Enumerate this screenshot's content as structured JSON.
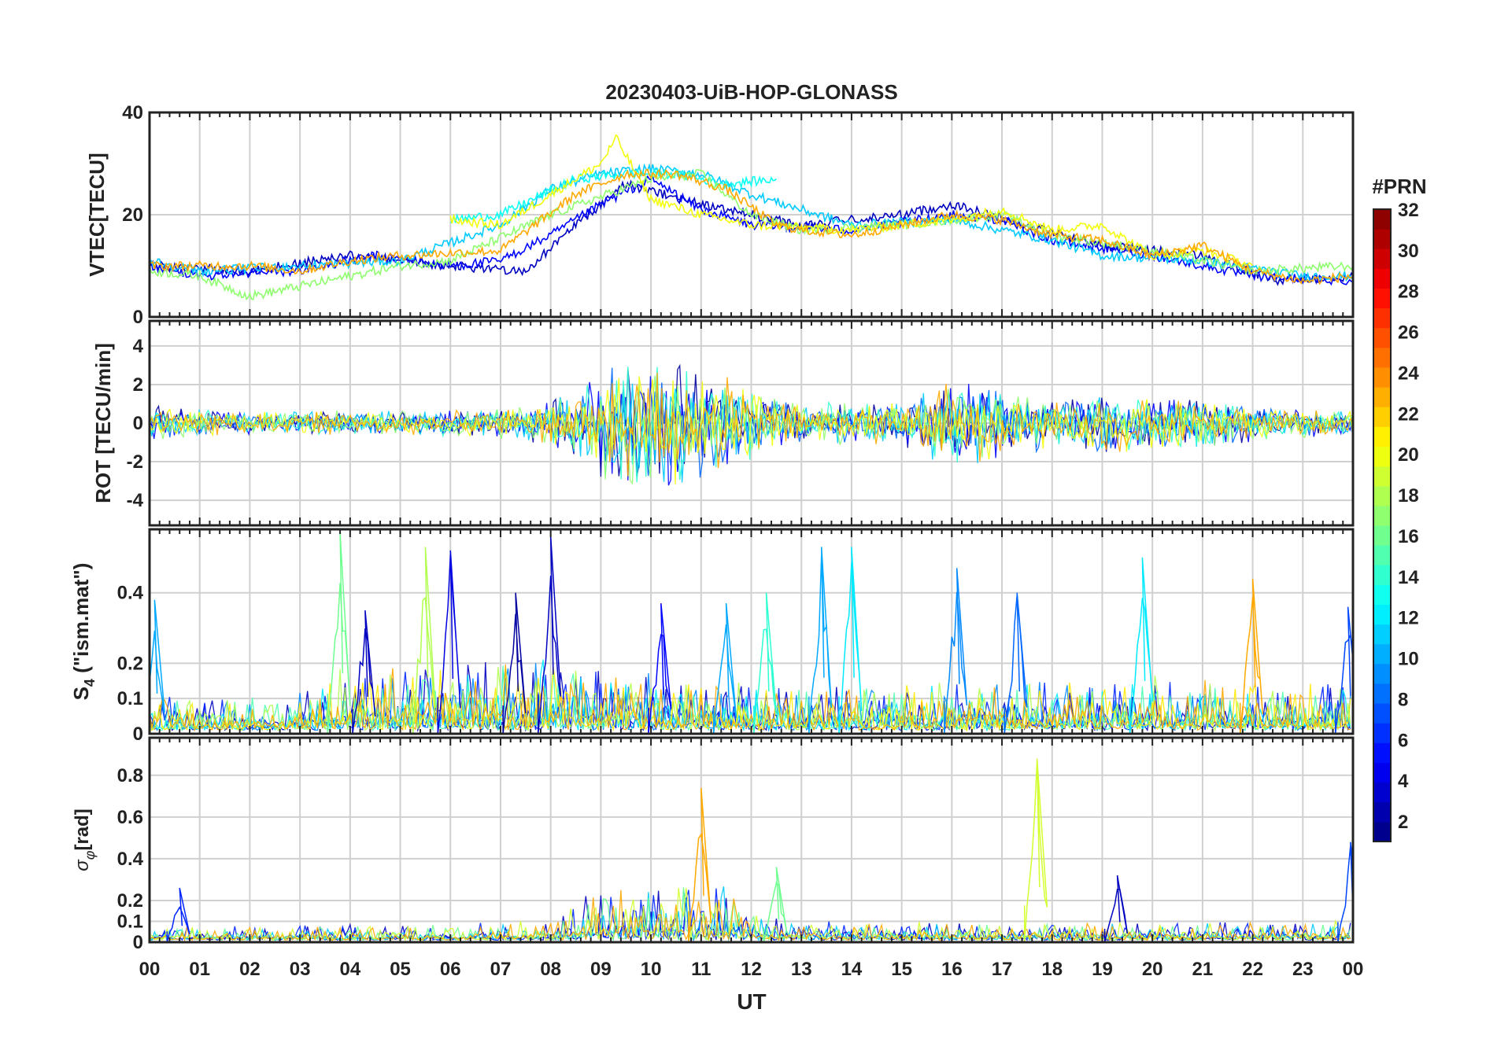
{
  "chart_data": {
    "type": "line",
    "title": "20230403-UiB-HOP-GLONASS",
    "xlabel": "UT",
    "x_range_hours": [
      0,
      24
    ],
    "x_tick_labels": [
      "00",
      "01",
      "02",
      "03",
      "04",
      "05",
      "06",
      "07",
      "08",
      "09",
      "10",
      "11",
      "12",
      "13",
      "14",
      "15",
      "16",
      "17",
      "18",
      "19",
      "20",
      "21",
      "22",
      "23",
      "00"
    ],
    "grid": true,
    "colorbar": {
      "label": "#PRN",
      "range": [
        1,
        32
      ],
      "tick_labels": [
        "2",
        "4",
        "6",
        "8",
        "10",
        "12",
        "14",
        "16",
        "18",
        "20",
        "22",
        "24",
        "26",
        "28",
        "30",
        "32"
      ],
      "colormap": "jet"
    },
    "panels": [
      {
        "id": "vtec",
        "ylabel": "VTEC[TECU]",
        "ylim": [
          0,
          40
        ],
        "y_ticks": [
          0,
          20,
          40
        ],
        "y_tick_labels": [
          "0",
          "20",
          "40"
        ],
        "series": [
          {
            "prn": 3,
            "points": [
              [
                0,
                10
              ],
              [
                2,
                9
              ],
              [
                4,
                12
              ],
              [
                6,
                10
              ],
              [
                7.5,
                9
              ],
              [
                8.5,
                18
              ],
              [
                9.5,
                26
              ],
              [
                11,
                22
              ],
              [
                13,
                18
              ],
              [
                15,
                20
              ],
              [
                16,
                22
              ],
              [
                17.5,
                18
              ],
              [
                19,
                14
              ],
              [
                21,
                12
              ],
              [
                22.5,
                7
              ],
              [
                24,
                8
              ]
            ]
          },
          {
            "prn": 5,
            "points": [
              [
                0,
                10
              ],
              [
                1,
                8
              ],
              [
                3,
                9
              ],
              [
                4.5,
                12
              ],
              [
                6,
                10
              ],
              [
                7,
                11
              ],
              [
                8,
                16
              ],
              [
                9,
                22
              ],
              [
                10,
                27
              ],
              [
                11,
                21
              ],
              [
                12,
                18
              ],
              [
                14,
                17
              ],
              [
                16,
                20
              ],
              [
                17,
                19
              ],
              [
                18,
                15
              ],
              [
                20,
                12
              ],
              [
                22,
                8
              ],
              [
                24,
                7
              ]
            ]
          },
          {
            "prn": 11,
            "points": [
              [
                0,
                11
              ],
              [
                1,
                9
              ],
              [
                3,
                10
              ],
              [
                5,
                11
              ],
              [
                7,
                18
              ],
              [
                8,
                25
              ],
              [
                9,
                28
              ],
              [
                10,
                29
              ],
              [
                11,
                28
              ],
              [
                12,
                24
              ],
              [
                14,
                18
              ],
              [
                16,
                19
              ],
              [
                18,
                15
              ],
              [
                19,
                12
              ],
              [
                21,
                11
              ],
              [
                23,
                8
              ],
              [
                24,
                8
              ]
            ]
          },
          {
            "prn": 13,
            "points": [
              [
                6,
                19
              ],
              [
                7,
                20
              ],
              [
                8.5,
                27
              ],
              [
                9.5,
                28
              ],
              [
                10.5,
                28
              ],
              [
                11.5,
                26
              ],
              [
                12.5,
                27
              ]
            ]
          },
          {
            "prn": 17,
            "points": [
              [
                0,
                9
              ],
              [
                1,
                8
              ],
              [
                2,
                4
              ],
              [
                3,
                6
              ],
              [
                5,
                10
              ],
              [
                6,
                11
              ],
              [
                8,
                20
              ],
              [
                10,
                27
              ],
              [
                11,
                28
              ],
              [
                12,
                20
              ],
              [
                13,
                17
              ],
              [
                15,
                18
              ],
              [
                17,
                20
              ],
              [
                18,
                16
              ],
              [
                20,
                13
              ],
              [
                22,
                9
              ],
              [
                24,
                10
              ]
            ]
          },
          {
            "prn": 20,
            "points": [
              [
                6,
                19
              ],
              [
                7,
                18
              ],
              [
                8,
                24
              ],
              [
                9,
                30
              ],
              [
                9.3,
                35
              ],
              [
                10,
                23
              ],
              [
                11,
                20
              ],
              [
                12,
                18
              ],
              [
                14,
                17
              ],
              [
                16,
                19
              ],
              [
                17,
                21
              ],
              [
                18,
                17
              ],
              [
                19,
                18
              ],
              [
                20,
                12
              ],
              [
                21,
                13
              ],
              [
                22,
                10
              ]
            ]
          },
          {
            "prn": 23,
            "points": [
              [
                0,
                10
              ],
              [
                1,
                10
              ],
              [
                2,
                10
              ],
              [
                3,
                9
              ],
              [
                4,
                11
              ],
              [
                5,
                12
              ],
              [
                7,
                13
              ],
              [
                8.5,
                24
              ],
              [
                9.5,
                28
              ],
              [
                10.5,
                28
              ],
              [
                11.5,
                25
              ],
              [
                12.5,
                18
              ],
              [
                13,
                17
              ],
              [
                14,
                16
              ],
              [
                15,
                18
              ],
              [
                16,
                20
              ],
              [
                17,
                19
              ],
              [
                18,
                16
              ],
              [
                19,
                15
              ],
              [
                20,
                12
              ],
              [
                21,
                14
              ],
              [
                22,
                9
              ],
              [
                23,
                7
              ],
              [
                24,
                8
              ]
            ]
          }
        ]
      },
      {
        "id": "rot",
        "ylabel": "ROT [TECU/min]",
        "ylim": [
          -5.3,
          5.3
        ],
        "y_ticks": [
          -4,
          -2,
          0,
          2,
          4
        ],
        "y_tick_labels": [
          "-4",
          "-2",
          "0",
          "2",
          "4"
        ],
        "noise_profile": [
          [
            0,
            0.7
          ],
          [
            2,
            0.45
          ],
          [
            4,
            0.5
          ],
          [
            6,
            0.5
          ],
          [
            7.5,
            0.7
          ],
          [
            8.5,
            1.3
          ],
          [
            9.5,
            2.8
          ],
          [
            10.5,
            2.8
          ],
          [
            11.5,
            1.8
          ],
          [
            13,
            0.8
          ],
          [
            15,
            0.9
          ],
          [
            16,
            1.8
          ],
          [
            17,
            1.4
          ],
          [
            18,
            0.9
          ],
          [
            19,
            1.2
          ],
          [
            21,
            1.0
          ],
          [
            22,
            0.7
          ],
          [
            24,
            0.5
          ]
        ],
        "series_prns": [
          2,
          5,
          8,
          11,
          14,
          17,
          20,
          23
        ]
      },
      {
        "id": "s4",
        "ylabel": "S4 (\"ism.mat\")",
        "ylabel_main": "S",
        "ylabel_sub": "4",
        "ylabel_rest": " (\"ism.mat\")",
        "ylim": [
          0,
          0.58
        ],
        "y_ticks": [
          0,
          0.1,
          0.2,
          0.4
        ],
        "y_tick_labels": [
          "0",
          "0.1",
          "0.2",
          "0.4"
        ],
        "noise_profile": [
          [
            0,
            0.1
          ],
          [
            3,
            0.12
          ],
          [
            4,
            0.2
          ],
          [
            5,
            0.18
          ],
          [
            6,
            0.2
          ],
          [
            8,
            0.22
          ],
          [
            10,
            0.18
          ],
          [
            12,
            0.15
          ],
          [
            14,
            0.15
          ],
          [
            16,
            0.15
          ],
          [
            18,
            0.15
          ],
          [
            20,
            0.17
          ],
          [
            22,
            0.15
          ],
          [
            24,
            0.15
          ]
        ],
        "peaks": [
          [
            0.1,
            0.38,
            10
          ],
          [
            3.8,
            0.57,
            16
          ],
          [
            4.3,
            0.35,
            3
          ],
          [
            5.5,
            0.53,
            18
          ],
          [
            6,
            0.52,
            4
          ],
          [
            7.3,
            0.4,
            2
          ],
          [
            8,
            0.56,
            3
          ],
          [
            10.2,
            0.37,
            5
          ],
          [
            11.5,
            0.37,
            10
          ],
          [
            12.3,
            0.4,
            14
          ],
          [
            13.4,
            0.53,
            10
          ],
          [
            14,
            0.53,
            12
          ],
          [
            16.1,
            0.47,
            9
          ],
          [
            17.3,
            0.4,
            8
          ],
          [
            19.8,
            0.5,
            12
          ],
          [
            22,
            0.44,
            23
          ],
          [
            23.9,
            0.36,
            7
          ]
        ],
        "series_prns": [
          3,
          6,
          9,
          12,
          15,
          18,
          21,
          23
        ]
      },
      {
        "id": "sigma_phi",
        "ylabel": "σφ[rad]",
        "ylabel_main": "σ",
        "ylabel_sub": "φ",
        "ylabel_rest": "[rad]",
        "ylim": [
          0,
          0.98
        ],
        "y_ticks": [
          0,
          0.1,
          0.2,
          0.4,
          0.6,
          0.8
        ],
        "y_tick_labels": [
          "0",
          "0.1",
          "0.2",
          "0.4",
          "0.6",
          "0.8"
        ],
        "noise_profile": [
          [
            0,
            0.08
          ],
          [
            4,
            0.08
          ],
          [
            8,
            0.1
          ],
          [
            8.8,
            0.25
          ],
          [
            10,
            0.3
          ],
          [
            11.5,
            0.28
          ],
          [
            12,
            0.15
          ],
          [
            13,
            0.1
          ],
          [
            16,
            0.1
          ],
          [
            20,
            0.09
          ],
          [
            24,
            0.1
          ]
        ],
        "peaks": [
          [
            0.6,
            0.26,
            6
          ],
          [
            11,
            0.74,
            23
          ],
          [
            12.5,
            0.36,
            16
          ],
          [
            17.7,
            0.88,
            19
          ],
          [
            19.3,
            0.32,
            3
          ],
          [
            23.95,
            0.48,
            7
          ]
        ],
        "series_prns": [
          3,
          6,
          11,
          16,
          19,
          23
        ]
      }
    ]
  }
}
